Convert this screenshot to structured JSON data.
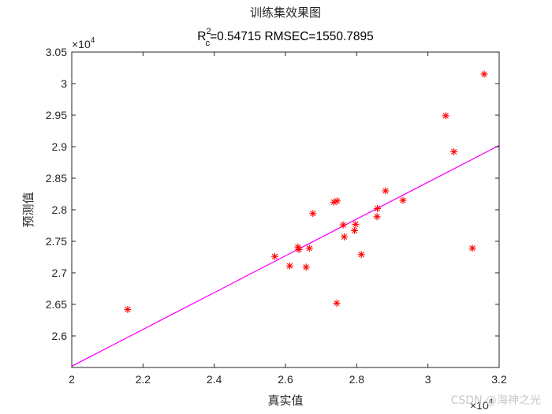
{
  "chart_data": {
    "type": "scatter",
    "title_line1": "训练集效果图",
    "title_r_prefix": "R",
    "title_r_sup": "2",
    "title_r_sub": "c",
    "title_rest": "=0.54715  RMSEC=1550.7895",
    "xlabel": "真实值",
    "ylabel": "预测值",
    "x_exponent_label": "×10",
    "x_exponent": "4",
    "y_exponent_label": "×10",
    "y_exponent": "4",
    "xlim": [
      2.0,
      3.2
    ],
    "ylim": [
      2.55,
      3.05
    ],
    "x_ticks": [
      2.0,
      2.2,
      2.4,
      2.6,
      2.8,
      3.0,
      3.2
    ],
    "x_tick_labels": [
      "2",
      "2.2",
      "2.4",
      "2.6",
      "2.8",
      "3",
      "3.2"
    ],
    "y_ticks": [
      2.6,
      2.65,
      2.7,
      2.75,
      2.8,
      2.85,
      2.9,
      2.95,
      3.0,
      3.05
    ],
    "y_tick_labels": [
      "2.6",
      "2.65",
      "2.7",
      "2.75",
      "2.8",
      "2.85",
      "2.9",
      "2.95",
      "3",
      "3.05"
    ],
    "fit_line": {
      "x": [
        2.0,
        3.2
      ],
      "y": [
        2.552,
        2.902
      ],
      "color": "#ff00ff"
    },
    "marker_color": "#ff0000",
    "points": [
      {
        "x": 2.157,
        "y": 2.642
      },
      {
        "x": 2.57,
        "y": 2.726
      },
      {
        "x": 2.612,
        "y": 2.711
      },
      {
        "x": 2.635,
        "y": 2.741
      },
      {
        "x": 2.638,
        "y": 2.737
      },
      {
        "x": 2.658,
        "y": 2.709
      },
      {
        "x": 2.667,
        "y": 2.739
      },
      {
        "x": 2.677,
        "y": 2.794
      },
      {
        "x": 2.736,
        "y": 2.812
      },
      {
        "x": 2.745,
        "y": 2.814
      },
      {
        "x": 2.744,
        "y": 2.652
      },
      {
        "x": 2.762,
        "y": 2.776
      },
      {
        "x": 2.765,
        "y": 2.757
      },
      {
        "x": 2.794,
        "y": 2.767
      },
      {
        "x": 2.797,
        "y": 2.777
      },
      {
        "x": 2.813,
        "y": 2.729
      },
      {
        "x": 2.857,
        "y": 2.789
      },
      {
        "x": 2.858,
        "y": 2.802
      },
      {
        "x": 2.881,
        "y": 2.83
      },
      {
        "x": 2.93,
        "y": 2.815
      },
      {
        "x": 3.05,
        "y": 2.949
      },
      {
        "x": 3.073,
        "y": 2.892
      },
      {
        "x": 3.125,
        "y": 2.739
      },
      {
        "x": 3.158,
        "y": 3.015
      }
    ]
  },
  "watermark": "CSDN @海神之光"
}
